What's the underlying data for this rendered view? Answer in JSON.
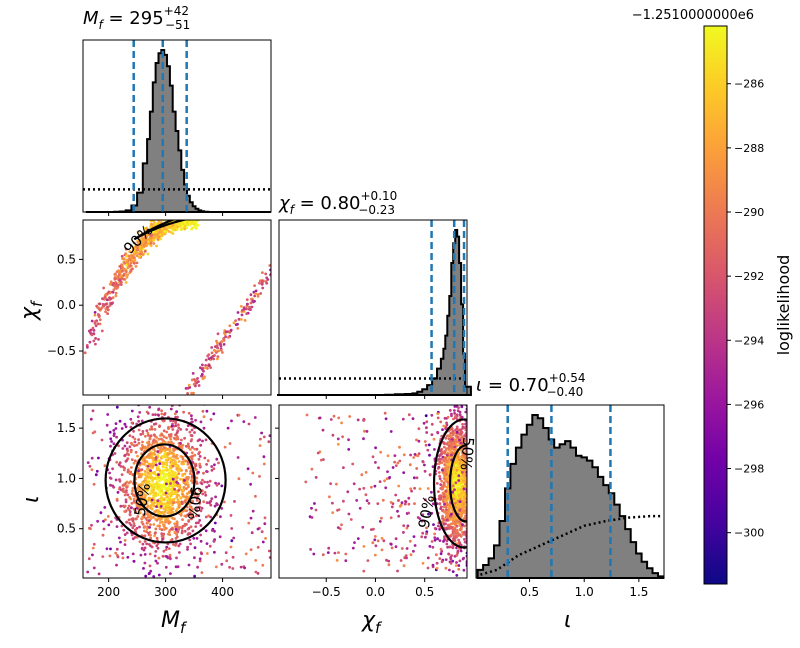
{
  "chart_data": {
    "type": "corner",
    "parameters": [
      {
        "key": "mf",
        "label": "M_f",
        "range": [
          155,
          485
        ],
        "ticks": [
          200,
          300,
          400
        ],
        "tick_labels": [
          "200",
          "300",
          "400"
        ],
        "median": 295,
        "lower": 244,
        "upper": 337,
        "title_value": "295",
        "title_plus": "+42",
        "title_minus": "−51"
      },
      {
        "key": "chi",
        "label": "χ_f",
        "range": [
          -0.98,
          0.93
        ],
        "ticks": [
          -0.5,
          0.0,
          0.5
        ],
        "tick_labels": [
          "−0.5",
          "0.0",
          "0.5"
        ],
        "median": 0.8,
        "lower": 0.57,
        "upper": 0.9,
        "title_value": "0.80",
        "title_plus": "+0.10",
        "title_minus": "−0.23"
      },
      {
        "key": "iota",
        "label": "ι",
        "range": [
          0.01,
          1.73
        ],
        "ticks": [
          0.5,
          1.0,
          1.5
        ],
        "tick_labels": [
          "0.5",
          "1.0",
          "1.5"
        ],
        "median": 0.7,
        "lower": 0.3,
        "upper": 1.24,
        "title_value": "0.70",
        "title_plus": "+0.54",
        "title_minus": "−0.40"
      }
    ],
    "axis_labels": {
      "mf": "M",
      "mf_sub": "f",
      "chi": "χ",
      "chi_sub": "f",
      "iota": "ι"
    },
    "histograms": {
      "mf": {
        "x": [
          165,
          175,
          185,
          195,
          205,
          215,
          225,
          235,
          245,
          255,
          265,
          270,
          275,
          280,
          285,
          290,
          295,
          300,
          305,
          310,
          315,
          320,
          325,
          330,
          335,
          340,
          345,
          350,
          355,
          360,
          365,
          370,
          380,
          390,
          400,
          410,
          420,
          430,
          440,
          450,
          460,
          470,
          480
        ],
        "y": [
          0,
          0,
          0,
          0,
          0,
          0.001,
          0.003,
          0.01,
          0.04,
          0.12,
          0.3,
          0.45,
          0.62,
          0.8,
          0.92,
          0.98,
          1.0,
          0.97,
          0.9,
          0.78,
          0.62,
          0.5,
          0.38,
          0.26,
          0.17,
          0.1,
          0.06,
          0.035,
          0.02,
          0.01,
          0.005,
          0.002,
          0,
          0,
          0,
          0,
          0,
          0,
          0,
          0,
          0,
          0,
          0
        ]
      },
      "chi": {
        "x": [
          -0.95,
          -0.85,
          -0.75,
          -0.65,
          -0.55,
          -0.45,
          -0.35,
          -0.25,
          -0.15,
          -0.05,
          0.05,
          0.15,
          0.25,
          0.35,
          0.4,
          0.45,
          0.5,
          0.55,
          0.6,
          0.65,
          0.68,
          0.7,
          0.72,
          0.74,
          0.76,
          0.78,
          0.8,
          0.82,
          0.84,
          0.86,
          0.88,
          0.9,
          0.92
        ],
        "y": [
          0,
          0,
          0,
          0,
          0,
          0,
          0,
          0,
          0,
          0,
          0,
          0.002,
          0.004,
          0.006,
          0.01,
          0.02,
          0.035,
          0.06,
          0.1,
          0.16,
          0.22,
          0.28,
          0.36,
          0.48,
          0.6,
          0.8,
          0.92,
          1.0,
          0.96,
          0.8,
          0.55,
          0.25,
          0.05
        ]
      },
      "iota": {
        "x": [
          0.05,
          0.1,
          0.15,
          0.2,
          0.25,
          0.3,
          0.35,
          0.4,
          0.45,
          0.5,
          0.55,
          0.6,
          0.65,
          0.7,
          0.75,
          0.8,
          0.85,
          0.9,
          0.95,
          1.0,
          1.05,
          1.1,
          1.15,
          1.2,
          1.25,
          1.3,
          1.35,
          1.4,
          1.45,
          1.5,
          1.55,
          1.6,
          1.65,
          1.7
        ],
        "y": [
          0.05,
          0.08,
          0.12,
          0.2,
          0.35,
          0.55,
          0.7,
          0.8,
          0.88,
          0.94,
          1.0,
          0.98,
          0.92,
          0.85,
          0.8,
          0.82,
          0.84,
          0.8,
          0.75,
          0.74,
          0.72,
          0.68,
          0.62,
          0.57,
          0.52,
          0.45,
          0.38,
          0.3,
          0.22,
          0.15,
          0.1,
          0.06,
          0.03,
          0.01
        ]
      }
    },
    "prior_lines": {
      "mf": {
        "level": 0.14
      },
      "chi": {
        "level": 0.1
      },
      "iota": {
        "x": [
          0.05,
          0.2,
          0.4,
          0.6,
          0.8,
          1.0,
          1.2,
          1.4,
          1.6,
          1.7
        ],
        "y": [
          0.02,
          0.05,
          0.14,
          0.2,
          0.26,
          0.32,
          0.35,
          0.37,
          0.38,
          0.38
        ]
      }
    },
    "contour_labels": {
      "a": "90%",
      "b": "50%"
    },
    "colorbar": {
      "label": "loglikelihood",
      "offset_text": "−1.2510000000e6",
      "range": [
        -301.6,
        -284.2
      ],
      "ticks": [
        -286,
        -288,
        -290,
        -292,
        -294,
        -296,
        -298,
        -300
      ],
      "tick_labels": [
        "−286",
        "−288",
        "−290",
        "−292",
        "−294",
        "−296",
        "−298",
        "−300"
      ],
      "colormap": "plasma",
      "colors": [
        "#0d0887",
        "#46039f",
        "#7201a8",
        "#9c179e",
        "#bd3786",
        "#d8576b",
        "#ed7953",
        "#fb9f3a",
        "#fdca26",
        "#f0f921"
      ]
    },
    "styles": {
      "hist_fill": "#808080",
      "median_line": "#1f77b4"
    }
  }
}
